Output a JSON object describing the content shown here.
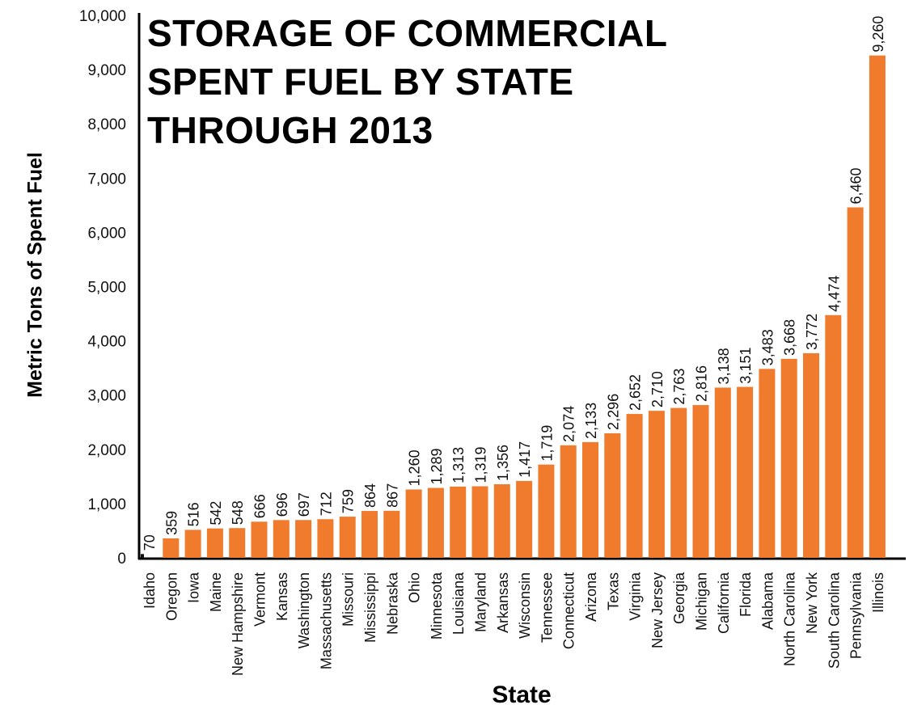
{
  "chart_data": {
    "type": "bar",
    "title_lines": [
      "STORAGE OF COMMERCIAL",
      "SPENT FUEL BY STATE",
      "THROUGH 2013"
    ],
    "xlabel": "State",
    "ylabel": "Metric Tons of Spent Fuel",
    "ylim": [
      0,
      10000
    ],
    "yticks": [
      0,
      1000,
      2000,
      3000,
      4000,
      5000,
      6000,
      7000,
      8000,
      9000,
      10000
    ],
    "ytick_labels": [
      "0",
      "1,000",
      "2,000",
      "3,000",
      "4,000",
      "5,000",
      "6,000",
      "7,000",
      "8,000",
      "9,000",
      "10,000"
    ],
    "bar_color": "#f07b2c",
    "first_bar_color": "#111111",
    "grid": false,
    "legend": "none",
    "categories": [
      "Idaho",
      "Oregon",
      "Iowa",
      "Maine",
      "New Hampshire",
      "Vermont",
      "Kansas",
      "Washington",
      "Massachusetts",
      "Missouri",
      "Mississippi",
      "Nebraska",
      "Ohio",
      "Minnesota",
      "Louisiana",
      "Maryland",
      "Arkansas",
      "Wisconsin",
      "Tennessee",
      "Connecticut",
      "Arizona",
      "Texas",
      "Virginia",
      "New Jersey",
      "Georgia",
      "Michigan",
      "California",
      "Florida",
      "Alabama",
      "North Carolina",
      "New York",
      "South Carolina",
      "Pennsylvania",
      "Illinois"
    ],
    "values": [
      70,
      359,
      516,
      542,
      548,
      666,
      696,
      697,
      712,
      759,
      864,
      867,
      1260,
      1289,
      1313,
      1319,
      1356,
      1417,
      1719,
      2074,
      2133,
      2296,
      2652,
      2710,
      2763,
      2816,
      3138,
      3151,
      3483,
      3668,
      3772,
      4474,
      6460,
      9260
    ],
    "value_labels": [
      "70",
      "359",
      "516",
      "542",
      "548",
      "666",
      "696",
      "697",
      "712",
      "759",
      "864",
      "867",
      "1,260",
      "1,289",
      "1,313",
      "1,319",
      "1,356",
      "1,417",
      "1,719",
      "2,074",
      "2,133",
      "2,296",
      "2,652",
      "2,710",
      "2,763",
      "2,816",
      "3,138",
      "3,151",
      "3,483",
      "3,668",
      "3,772",
      "4,474",
      "6,460",
      "9,260"
    ]
  }
}
